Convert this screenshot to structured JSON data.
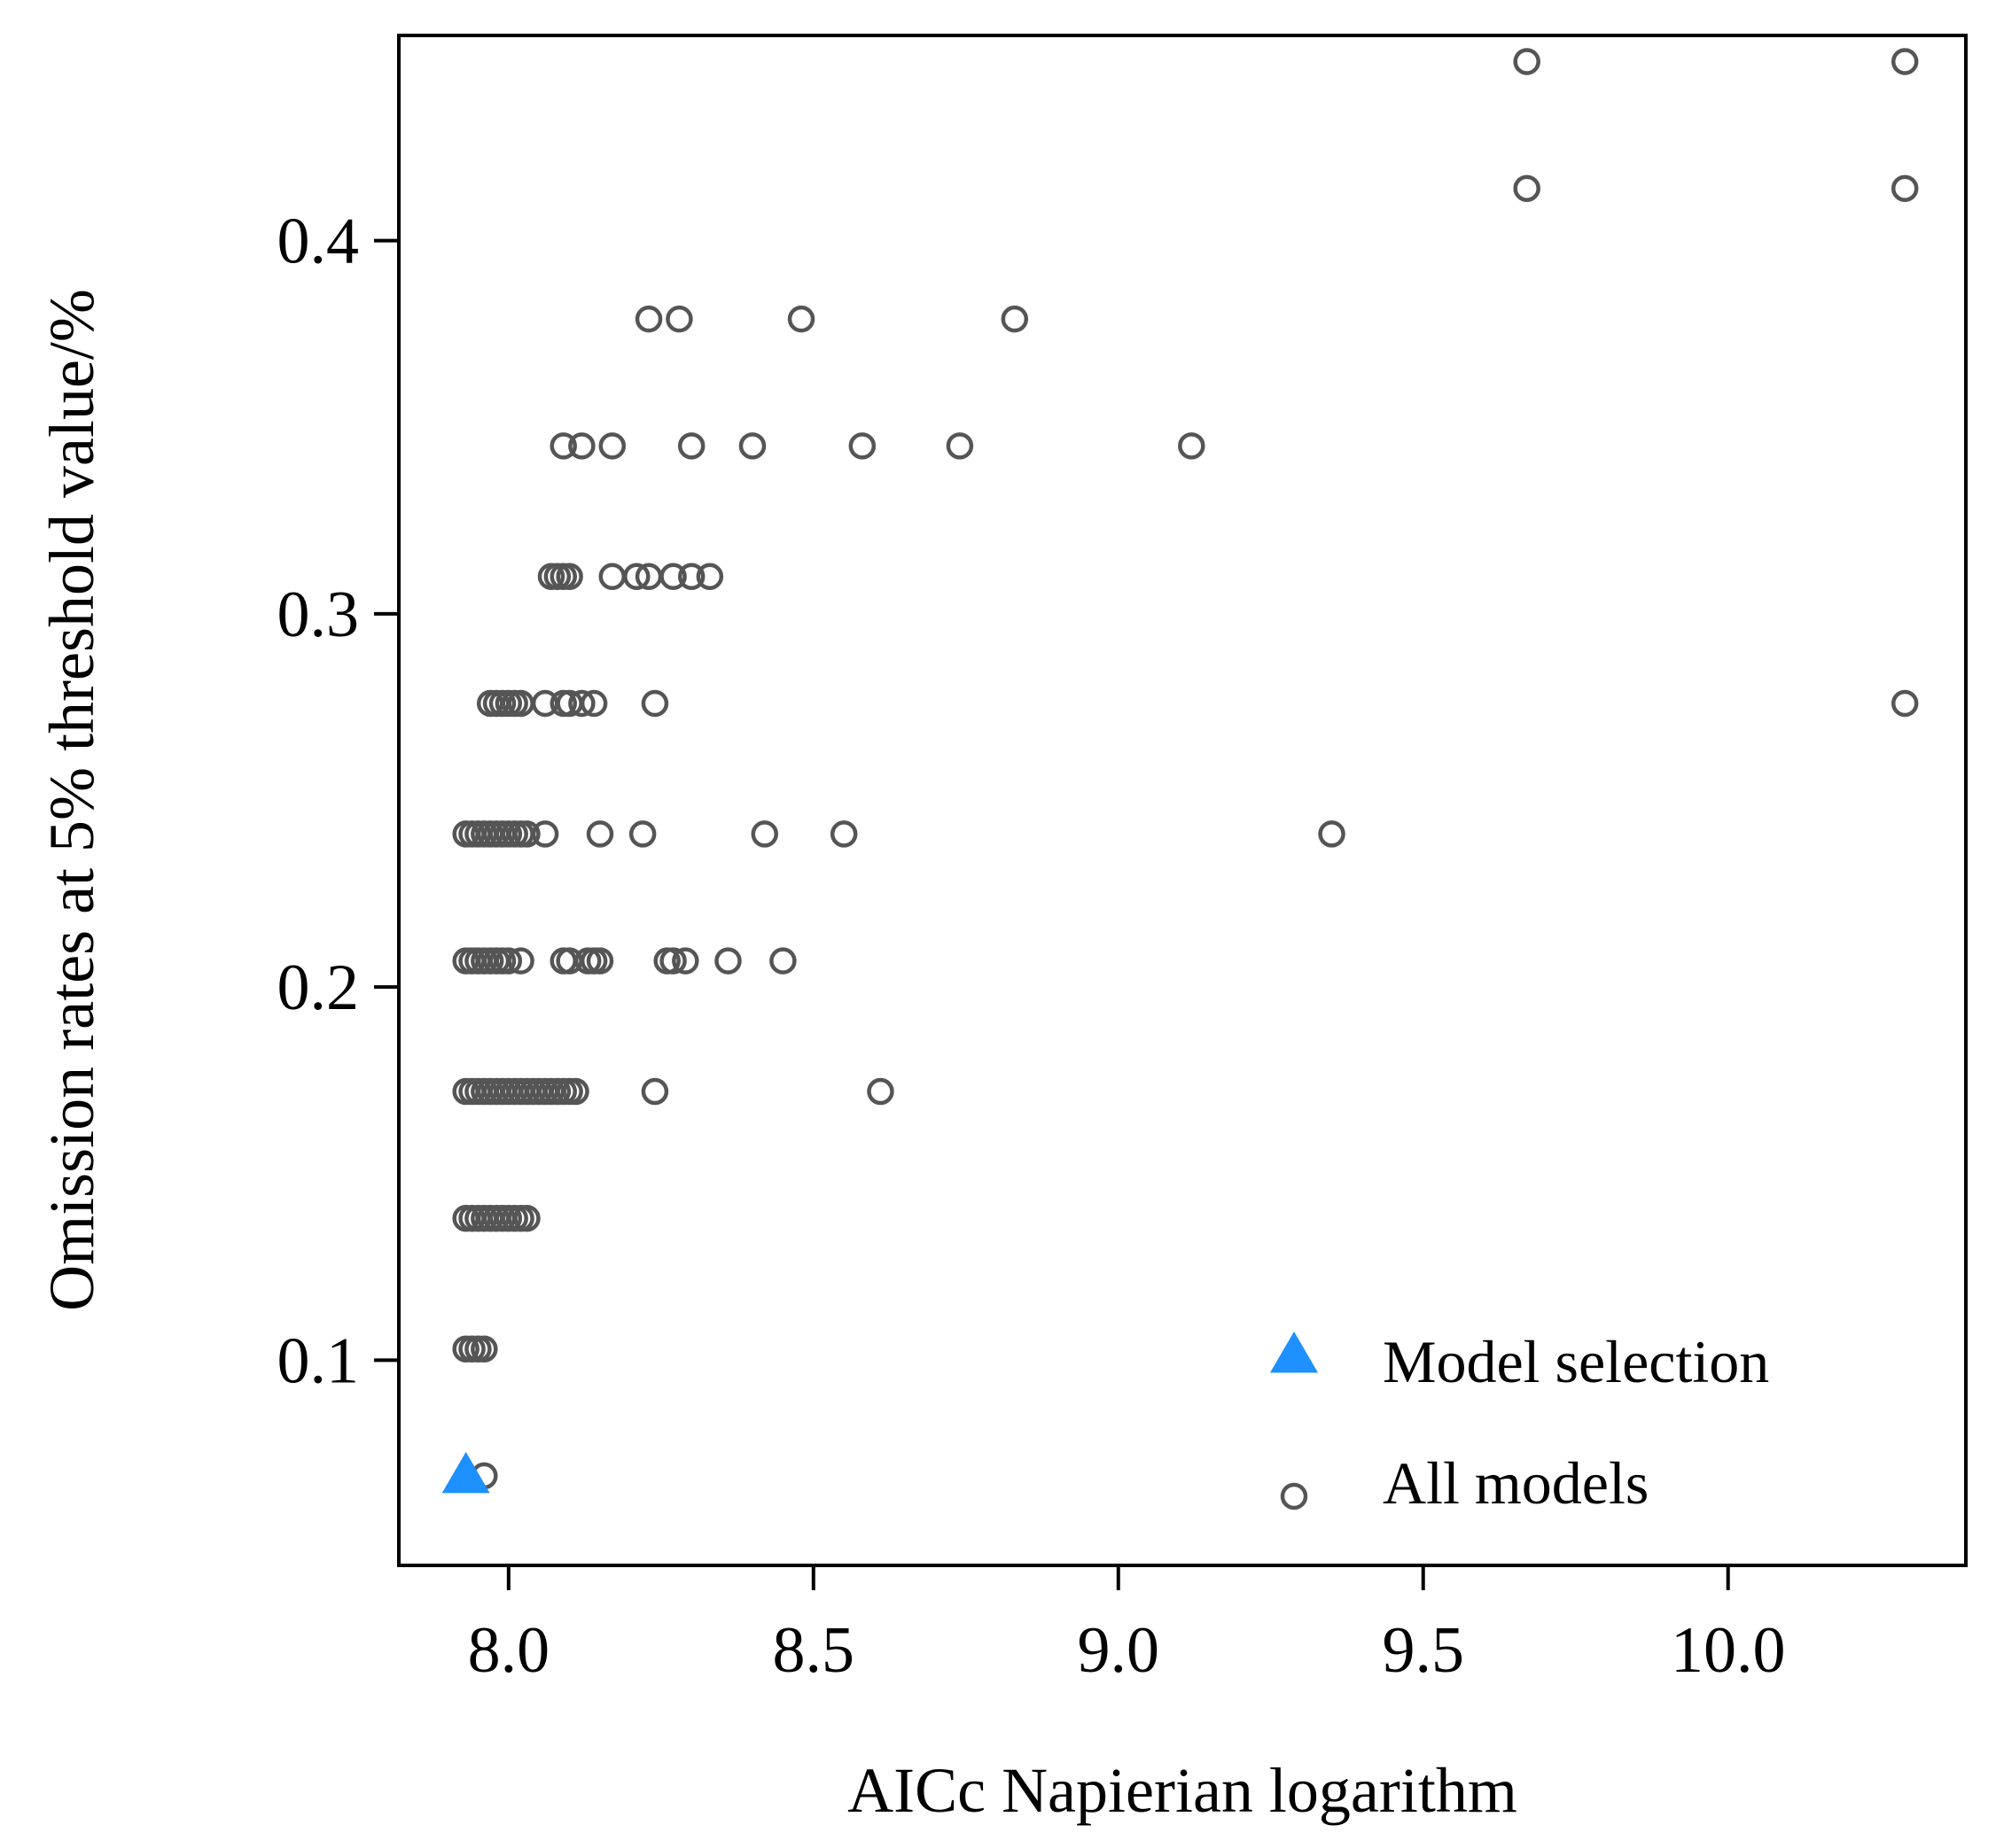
{
  "chart_data": {
    "type": "scatter",
    "title": "",
    "xlabel": "AICc  Napierian logarithm",
    "ylabel": "Omission rates at 5% threshold value/%",
    "xlim": [
      7.82,
      10.39
    ],
    "ylim": [
      0.045,
      0.455
    ],
    "x_ticks": [
      8.0,
      8.5,
      9.0,
      9.5,
      10.0
    ],
    "x_tick_labels": [
      "8.0",
      "8.5",
      "9.0",
      "9.5",
      "10.0"
    ],
    "y_ticks": [
      0.1,
      0.2,
      0.3,
      0.4
    ],
    "y_tick_labels": [
      "0.1",
      "0.2",
      "0.3",
      "0.4"
    ],
    "grid": false,
    "legend_position": "bottom-right",
    "series": [
      {
        "name": "All models",
        "marker": "open-circle",
        "color": "#555555",
        "points": [
          {
            "x": 9.67,
            "y": 0.448
          },
          {
            "x": 10.29,
            "y": 0.448
          },
          {
            "x": 9.67,
            "y": 0.414
          },
          {
            "x": 10.29,
            "y": 0.414
          },
          {
            "x": 8.23,
            "y": 0.379
          },
          {
            "x": 8.28,
            "y": 0.379
          },
          {
            "x": 8.48,
            "y": 0.379
          },
          {
            "x": 8.83,
            "y": 0.379
          },
          {
            "x": 8.09,
            "y": 0.345
          },
          {
            "x": 8.12,
            "y": 0.345
          },
          {
            "x": 8.17,
            "y": 0.345
          },
          {
            "x": 8.3,
            "y": 0.345
          },
          {
            "x": 8.4,
            "y": 0.345
          },
          {
            "x": 8.58,
            "y": 0.345
          },
          {
            "x": 8.74,
            "y": 0.345
          },
          {
            "x": 9.12,
            "y": 0.345
          },
          {
            "x": 8.07,
            "y": 0.31
          },
          {
            "x": 8.08,
            "y": 0.31
          },
          {
            "x": 8.09,
            "y": 0.31
          },
          {
            "x": 8.1,
            "y": 0.31
          },
          {
            "x": 8.17,
            "y": 0.31
          },
          {
            "x": 8.21,
            "y": 0.31
          },
          {
            "x": 8.23,
            "y": 0.31
          },
          {
            "x": 8.27,
            "y": 0.31
          },
          {
            "x": 8.3,
            "y": 0.31
          },
          {
            "x": 8.33,
            "y": 0.31
          },
          {
            "x": 7.97,
            "y": 0.276
          },
          {
            "x": 7.98,
            "y": 0.276
          },
          {
            "x": 7.99,
            "y": 0.276
          },
          {
            "x": 8.0,
            "y": 0.276
          },
          {
            "x": 8.01,
            "y": 0.276
          },
          {
            "x": 8.02,
            "y": 0.276
          },
          {
            "x": 8.06,
            "y": 0.276
          },
          {
            "x": 8.09,
            "y": 0.276
          },
          {
            "x": 8.1,
            "y": 0.276
          },
          {
            "x": 8.12,
            "y": 0.276
          },
          {
            "x": 8.14,
            "y": 0.276
          },
          {
            "x": 8.24,
            "y": 0.276
          },
          {
            "x": 10.29,
            "y": 0.276
          },
          {
            "x": 7.93,
            "y": 0.241
          },
          {
            "x": 7.94,
            "y": 0.241
          },
          {
            "x": 7.95,
            "y": 0.241
          },
          {
            "x": 7.96,
            "y": 0.241
          },
          {
            "x": 7.97,
            "y": 0.241
          },
          {
            "x": 7.98,
            "y": 0.241
          },
          {
            "x": 7.99,
            "y": 0.241
          },
          {
            "x": 8.0,
            "y": 0.241
          },
          {
            "x": 8.01,
            "y": 0.241
          },
          {
            "x": 8.02,
            "y": 0.241
          },
          {
            "x": 8.03,
            "y": 0.241
          },
          {
            "x": 8.06,
            "y": 0.241
          },
          {
            "x": 8.15,
            "y": 0.241
          },
          {
            "x": 8.22,
            "y": 0.241
          },
          {
            "x": 8.42,
            "y": 0.241
          },
          {
            "x": 8.55,
            "y": 0.241
          },
          {
            "x": 9.35,
            "y": 0.241
          },
          {
            "x": 7.93,
            "y": 0.207
          },
          {
            "x": 7.94,
            "y": 0.207
          },
          {
            "x": 7.95,
            "y": 0.207
          },
          {
            "x": 7.96,
            "y": 0.207
          },
          {
            "x": 7.97,
            "y": 0.207
          },
          {
            "x": 7.98,
            "y": 0.207
          },
          {
            "x": 7.99,
            "y": 0.207
          },
          {
            "x": 8.0,
            "y": 0.207
          },
          {
            "x": 8.02,
            "y": 0.207
          },
          {
            "x": 8.09,
            "y": 0.207
          },
          {
            "x": 8.1,
            "y": 0.207
          },
          {
            "x": 8.13,
            "y": 0.207
          },
          {
            "x": 8.14,
            "y": 0.207
          },
          {
            "x": 8.15,
            "y": 0.207
          },
          {
            "x": 8.26,
            "y": 0.207
          },
          {
            "x": 8.27,
            "y": 0.207
          },
          {
            "x": 8.29,
            "y": 0.207
          },
          {
            "x": 8.36,
            "y": 0.207
          },
          {
            "x": 8.45,
            "y": 0.207
          },
          {
            "x": 7.93,
            "y": 0.172
          },
          {
            "x": 7.94,
            "y": 0.172
          },
          {
            "x": 7.95,
            "y": 0.172
          },
          {
            "x": 7.96,
            "y": 0.172
          },
          {
            "x": 7.97,
            "y": 0.172
          },
          {
            "x": 7.98,
            "y": 0.172
          },
          {
            "x": 7.99,
            "y": 0.172
          },
          {
            "x": 8.0,
            "y": 0.172
          },
          {
            "x": 8.01,
            "y": 0.172
          },
          {
            "x": 8.02,
            "y": 0.172
          },
          {
            "x": 8.03,
            "y": 0.172
          },
          {
            "x": 8.04,
            "y": 0.172
          },
          {
            "x": 8.05,
            "y": 0.172
          },
          {
            "x": 8.06,
            "y": 0.172
          },
          {
            "x": 8.07,
            "y": 0.172
          },
          {
            "x": 8.08,
            "y": 0.172
          },
          {
            "x": 8.09,
            "y": 0.172
          },
          {
            "x": 8.1,
            "y": 0.172
          },
          {
            "x": 8.11,
            "y": 0.172
          },
          {
            "x": 8.24,
            "y": 0.172
          },
          {
            "x": 8.61,
            "y": 0.172
          },
          {
            "x": 7.93,
            "y": 0.138
          },
          {
            "x": 7.94,
            "y": 0.138
          },
          {
            "x": 7.95,
            "y": 0.138
          },
          {
            "x": 7.96,
            "y": 0.138
          },
          {
            "x": 7.97,
            "y": 0.138
          },
          {
            "x": 7.98,
            "y": 0.138
          },
          {
            "x": 7.99,
            "y": 0.138
          },
          {
            "x": 8.0,
            "y": 0.138
          },
          {
            "x": 8.01,
            "y": 0.138
          },
          {
            "x": 8.02,
            "y": 0.138
          },
          {
            "x": 8.03,
            "y": 0.138
          },
          {
            "x": 7.93,
            "y": 0.103
          },
          {
            "x": 7.94,
            "y": 0.103
          },
          {
            "x": 7.95,
            "y": 0.103
          },
          {
            "x": 7.96,
            "y": 0.103
          },
          {
            "x": 7.96,
            "y": 0.069
          }
        ]
      },
      {
        "name": "Model selection",
        "marker": "filled-triangle",
        "color": "#1E90FF",
        "points": [
          {
            "x": 7.93,
            "y": 0.069
          }
        ]
      }
    ],
    "legend": [
      {
        "label": "Model selection",
        "marker": "filled-triangle",
        "color": "#1E90FF"
      },
      {
        "label": "All models",
        "marker": "open-circle",
        "color": "#555555"
      }
    ]
  }
}
